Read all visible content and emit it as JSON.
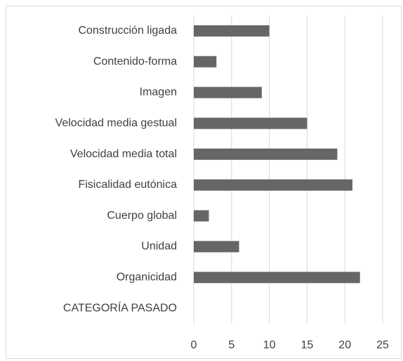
{
  "chart_data": {
    "type": "bar",
    "orientation": "horizontal",
    "categories": [
      "Construcción ligada",
      "Contenido-forma",
      "Imagen",
      "Velocidad media gestual",
      "Velocidad media total",
      "Fisicalidad eutónica",
      "Cuerpo global",
      "Unidad",
      "Organicidad",
      "CATEGORÍA PASADO"
    ],
    "values": [
      10,
      3,
      9,
      15,
      19,
      21,
      2,
      6,
      22,
      null
    ],
    "color": "#666666",
    "xlim": [
      0,
      25
    ],
    "xticks": [
      0,
      5,
      10,
      15,
      20,
      25
    ],
    "grid": true
  }
}
